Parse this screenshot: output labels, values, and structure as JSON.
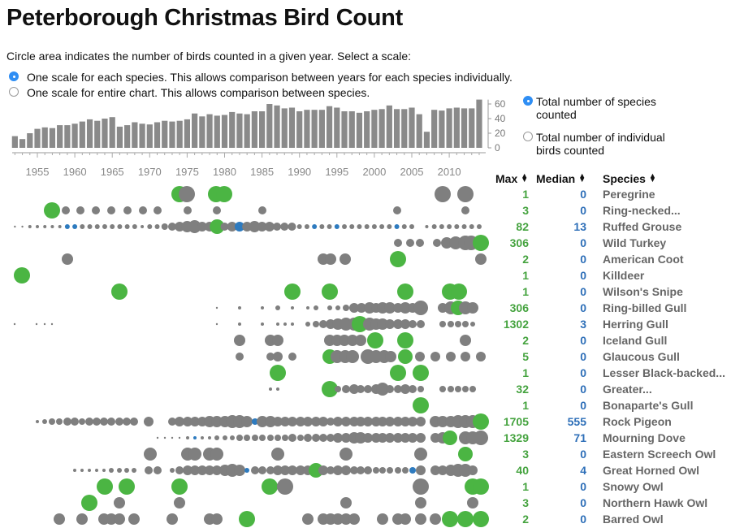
{
  "title": "Peterborough Christmas Bird Count",
  "instructions": "Circle area indicates the number of birds counted in a given year. Select a scale:",
  "scale_options": [
    {
      "label": "One scale for each species. This allows comparison between years for each species individually.",
      "selected": true
    },
    {
      "label": "One scale for entire chart. This allows comparison between species.",
      "selected": false
    }
  ],
  "top_toggle": [
    {
      "label": "Total number of species counted",
      "selected": true
    },
    {
      "label": "Total number of individual birds counted",
      "selected": false
    }
  ],
  "headers": {
    "max": "Max",
    "median": "Median",
    "species": "Species"
  },
  "colors": {
    "bar": "#8a8a8a",
    "dot": "#7f7f7f",
    "max_green": "#4bb543",
    "blue": "#2e7bbf",
    "max_text": "#45a33f",
    "median_text": "#2e6fb8",
    "species_text": "#666666",
    "radio": "#2f8ef4"
  },
  "chart_data": {
    "type": "scatter",
    "x_ticks": [
      1955,
      1960,
      1965,
      1970,
      1975,
      1980,
      1985,
      1990,
      1995,
      2000,
      2005,
      2010
    ],
    "bar_chart": {
      "type": "bar",
      "years": [
        1952,
        1953,
        1954,
        1955,
        1956,
        1957,
        1958,
        1959,
        1960,
        1961,
        1962,
        1963,
        1964,
        1965,
        1966,
        1967,
        1968,
        1969,
        1970,
        1971,
        1972,
        1973,
        1974,
        1975,
        1976,
        1977,
        1978,
        1979,
        1980,
        1981,
        1982,
        1983,
        1984,
        1985,
        1986,
        1987,
        1988,
        1989,
        1990,
        1991,
        1992,
        1993,
        1994,
        1995,
        1996,
        1997,
        1998,
        1999,
        2000,
        2001,
        2002,
        2003,
        2004,
        2005,
        2006,
        2007,
        2008,
        2009,
        2010,
        2011,
        2012,
        2013,
        2014
      ],
      "values": [
        16,
        12,
        20,
        26,
        28,
        27,
        31,
        31,
        33,
        36,
        39,
        37,
        40,
        42,
        29,
        31,
        35,
        33,
        32,
        35,
        37,
        36,
        37,
        39,
        47,
        43,
        46,
        44,
        45,
        49,
        47,
        46,
        50,
        50,
        60,
        58,
        54,
        55,
        50,
        52,
        52,
        52,
        57,
        55,
        50,
        50,
        48,
        50,
        52,
        53,
        58,
        53,
        53,
        55,
        46,
        22,
        52,
        51,
        54,
        55,
        54,
        54,
        66
      ],
      "y_ticks": [
        0,
        20,
        40,
        60
      ]
    },
    "species": [
      {
        "name": "Peregrine",
        "max": 1,
        "median": 0
      },
      {
        "name": "Ring-necked...",
        "max": 3,
        "median": 0
      },
      {
        "name": "Ruffed Grouse",
        "max": 82,
        "median": 13
      },
      {
        "name": "Wild Turkey",
        "max": 306,
        "median": 0
      },
      {
        "name": "American Coot",
        "max": 2,
        "median": 0
      },
      {
        "name": "Killdeer",
        "max": 1,
        "median": 0
      },
      {
        "name": "Wilson's Snipe",
        "max": 1,
        "median": 0
      },
      {
        "name": "Ring-billed Gull",
        "max": 306,
        "median": 0
      },
      {
        "name": "Herring Gull",
        "max": 1302,
        "median": 3
      },
      {
        "name": "Iceland Gull",
        "max": 2,
        "median": 0
      },
      {
        "name": "Glaucous Gull",
        "max": 5,
        "median": 0
      },
      {
        "name": "Lesser Black-backed...",
        "max": 1,
        "median": 0
      },
      {
        "name": "Greater...",
        "max": 32,
        "median": 0
      },
      {
        "name": "Bonaparte's Gull",
        "max": 1,
        "median": 0
      },
      {
        "name": "Rock Pigeon",
        "max": 1705,
        "median": 555
      },
      {
        "name": "Mourning Dove",
        "max": 1329,
        "median": 71
      },
      {
        "name": "Eastern Screech Owl",
        "max": 3,
        "median": 0
      },
      {
        "name": "Great Horned Owl",
        "max": 40,
        "median": 4
      },
      {
        "name": "Snowy Owl",
        "max": 1,
        "median": 0
      },
      {
        "name": "Northern Hawk Owl",
        "max": 3,
        "median": 0
      },
      {
        "name": "Barred Owl",
        "max": 2,
        "median": 0
      }
    ]
  }
}
